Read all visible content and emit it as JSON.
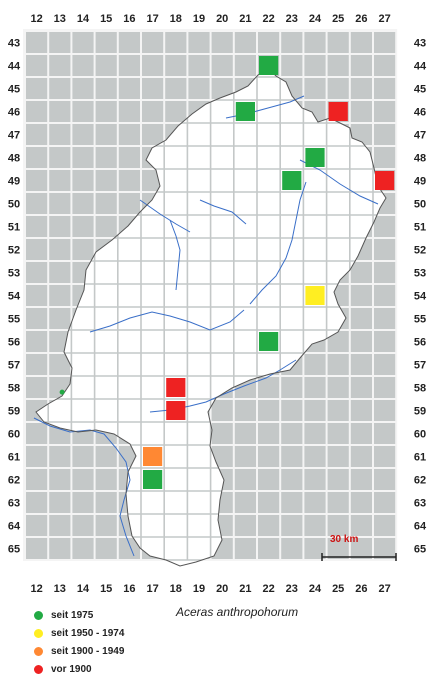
{
  "x_labels": [
    "12",
    "13",
    "14",
    "15",
    "16",
    "17",
    "18",
    "19",
    "20",
    "21",
    "22",
    "23",
    "24",
    "25",
    "26",
    "27"
  ],
  "y_labels": [
    "43",
    "44",
    "45",
    "46",
    "47",
    "48",
    "49",
    "50",
    "51",
    "52",
    "53",
    "54",
    "55",
    "56",
    "57",
    "58",
    "59",
    "60",
    "61",
    "62",
    "63",
    "64",
    "65"
  ],
  "species": "Aceras anthropohorum",
  "scale_bar": {
    "label": "30 km",
    "color": "#cc1111"
  },
  "colors": {
    "grid_outside": "#c4c8c8",
    "grid_inside": "#ffffff",
    "river": "#3a6fc8",
    "border": "#555555"
  },
  "legend": [
    {
      "label": "seit 1975",
      "color": "#22aa44"
    },
    {
      "label": "seit 1950 - 1974",
      "color": "#ffee22"
    },
    {
      "label": "seit 1900 - 1949",
      "color": "#ff8833"
    },
    {
      "label": "vor 1900",
      "color": "#ee2222"
    }
  ],
  "records": [
    {
      "col": 22,
      "row": 44,
      "period": "seit 1975"
    },
    {
      "col": 21,
      "row": 46,
      "period": "seit 1975"
    },
    {
      "col": 25,
      "row": 46,
      "period": "vor 1900"
    },
    {
      "col": 24,
      "row": 48,
      "period": "seit 1975"
    },
    {
      "col": 23,
      "row": 49,
      "period": "seit 1975"
    },
    {
      "col": 27,
      "row": 49,
      "period": "vor 1900"
    },
    {
      "col": 24,
      "row": 54,
      "period": "seit 1950 - 1974"
    },
    {
      "col": 22,
      "row": 56,
      "period": "seit 1975"
    },
    {
      "col": 18,
      "row": 58,
      "period": "vor 1900"
    },
    {
      "col": 18,
      "row": 59,
      "period": "vor 1900"
    },
    {
      "col": 17,
      "row": 61,
      "period": "seit 1900 - 1949"
    },
    {
      "col": 17,
      "row": 62,
      "period": "seit 1975"
    }
  ],
  "single_point": {
    "col": 13,
    "row": 59,
    "period": "seit 1975"
  }
}
